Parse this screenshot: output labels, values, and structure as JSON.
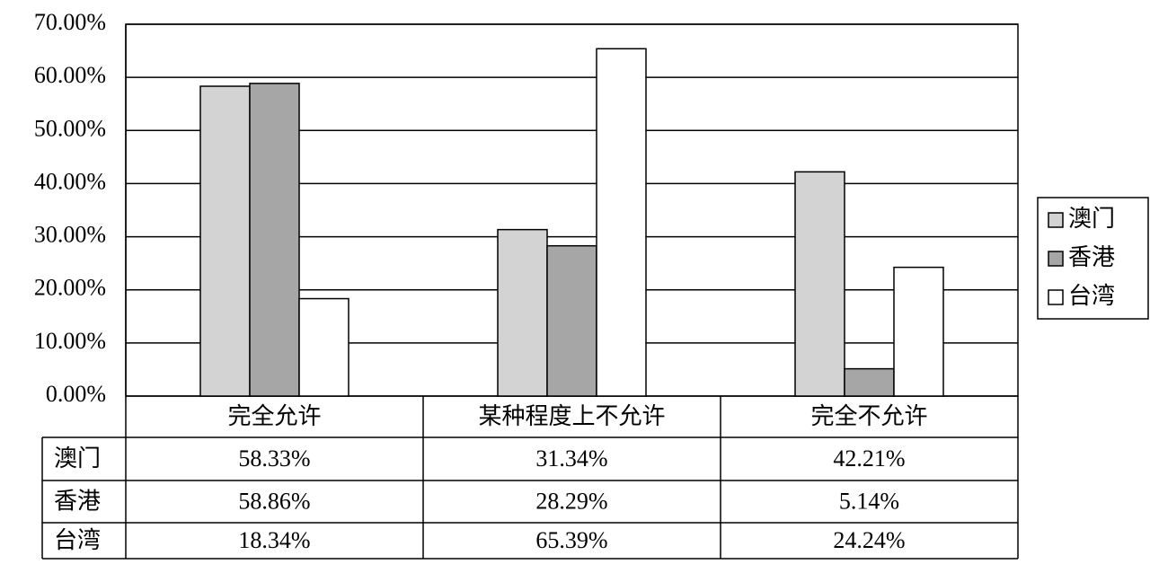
{
  "chart_data": {
    "type": "bar",
    "categories": [
      "完全允许",
      "某种程度上不允许",
      "完全不允许"
    ],
    "series": [
      {
        "name": "澳门",
        "color": "#d3d3d3",
        "values": [
          58.33,
          31.34,
          42.21
        ],
        "value_labels": [
          "58.33%",
          "31.34%",
          "42.21%"
        ]
      },
      {
        "name": "香港",
        "color": "#a6a6a6",
        "values": [
          58.86,
          28.29,
          5.14
        ],
        "value_labels": [
          "58.86%",
          "28.29%",
          "5.14%"
        ]
      },
      {
        "name": "台湾",
        "color": "#ffffff",
        "values": [
          18.34,
          65.39,
          24.24
        ],
        "value_labels": [
          "18.34%",
          "65.39%",
          "24.24%"
        ]
      }
    ],
    "ylim": [
      0,
      70
    ],
    "yticks": [
      {
        "value": 0,
        "label": "0.00%"
      },
      {
        "value": 10,
        "label": "10.00%"
      },
      {
        "value": 20,
        "label": "20.00%"
      },
      {
        "value": 30,
        "label": "30.00%"
      },
      {
        "value": 40,
        "label": "40.00%"
      },
      {
        "value": 50,
        "label": "50.00%"
      },
      {
        "value": 60,
        "label": "60.00%"
      },
      {
        "value": 70,
        "label": "70.00%"
      }
    ],
    "grid": true,
    "legend": "right",
    "data_table": true
  }
}
